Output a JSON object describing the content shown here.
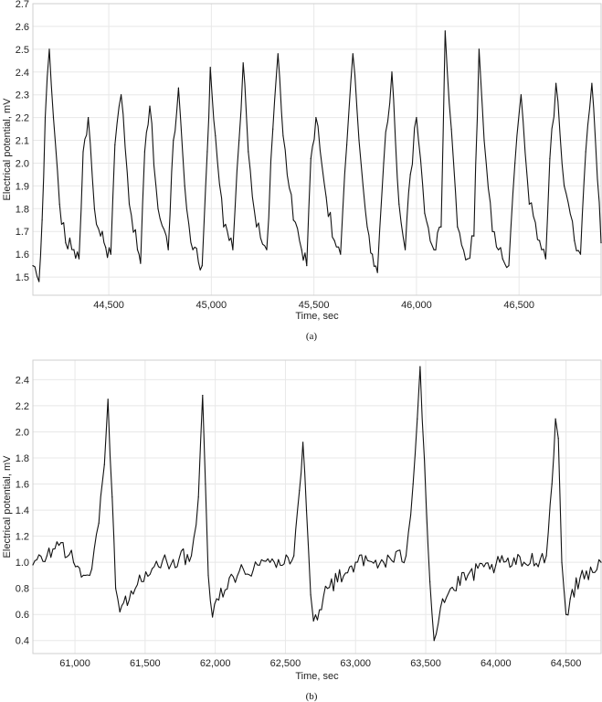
{
  "chart_data": [
    {
      "type": "line",
      "caption": "(a)",
      "xlabel": "Time, sec",
      "ylabel": "Electrical potential, mV",
      "xlim": [
        44130,
        46900
      ],
      "ylim": [
        1.42,
        2.7
      ],
      "xticks": [
        44500,
        45000,
        45500,
        46000,
        46500
      ],
      "xtick_labels": [
        "44,500",
        "45,000",
        "45,500",
        "46,000",
        "46,500"
      ],
      "yticks": [
        1.5,
        1.6,
        1.7,
        1.8,
        1.9,
        2.0,
        2.1,
        2.2,
        2.3,
        2.4,
        2.5,
        2.6,
        2.7
      ],
      "ytick_labels": [
        "1.5",
        "1.6",
        "1.7",
        "1.8",
        "1.9",
        "2.0",
        "2.1",
        "2.2",
        "2.3",
        "2.4",
        "2.5",
        "2.6",
        "2.7"
      ],
      "grid": true,
      "series": [
        {
          "x": [
            44130,
            44160,
            44175,
            44190,
            44210,
            44230,
            44260,
            44290,
            44330,
            44355,
            44375,
            44400,
            44430,
            44460,
            44485,
            44510,
            44530,
            44560,
            44600,
            44640,
            44655,
            44675,
            44700,
            44740,
            44790,
            44815,
            44840,
            44870,
            44910,
            44955,
            44980,
            44995,
            45020,
            45060,
            45105,
            45135,
            45155,
            45180,
            45220,
            45270,
            45300,
            45325,
            45350,
            45400,
            45440,
            45465,
            45485,
            45510,
            45560,
            45600,
            45630,
            45660,
            45690,
            45720,
            45760,
            45785,
            45810,
            45840,
            45880,
            45915,
            45945,
            45970,
            46000,
            46040,
            46085,
            46120,
            46140,
            46170,
            46200,
            46250,
            46280,
            46305,
            46330,
            46370,
            46420,
            46450,
            46480,
            46510,
            46550,
            46600,
            46630,
            46650,
            46680,
            46720,
            46770,
            46800,
            46825,
            46855,
            46900
          ],
          "y": [
            1.55,
            1.48,
            1.75,
            2.2,
            2.5,
            2.2,
            1.82,
            1.65,
            1.62,
            1.58,
            2.05,
            2.2,
            1.8,
            1.68,
            1.63,
            1.6,
            2.08,
            2.3,
            1.82,
            1.62,
            1.56,
            2.05,
            2.25,
            1.8,
            1.62,
            2.1,
            2.33,
            1.9,
            1.62,
            1.55,
            2.05,
            2.42,
            2.12,
            1.72,
            1.62,
            2.1,
            2.44,
            2.05,
            1.72,
            1.62,
            2.15,
            2.48,
            2.12,
            1.75,
            1.62,
            1.55,
            2.02,
            2.2,
            1.85,
            1.66,
            1.6,
            2.08,
            2.48,
            2.1,
            1.72,
            1.6,
            1.52,
            2.0,
            2.4,
            1.82,
            1.62,
            1.95,
            2.2,
            1.78,
            1.62,
            1.72,
            2.58,
            2.15,
            1.72,
            1.58,
            1.68,
            2.5,
            2.1,
            1.7,
            1.58,
            1.55,
            2.0,
            2.3,
            1.82,
            1.66,
            1.58,
            2.02,
            2.35,
            1.9,
            1.66,
            1.6,
            2.05,
            2.35,
            1.65
          ]
        }
      ]
    },
    {
      "type": "line",
      "caption": "(b)",
      "xlabel": "Time, sec",
      "ylabel": "Electrical potential, mV",
      "xlim": [
        60700,
        64750
      ],
      "ylim": [
        0.3,
        2.55
      ],
      "xticks": [
        61000,
        61500,
        62000,
        62500,
        63000,
        63500,
        64000,
        64500
      ],
      "xtick_labels": [
        "61,000",
        "61,500",
        "62,000",
        "62,500",
        "63,000",
        "63,500",
        "64,000",
        "64,500"
      ],
      "yticks": [
        0.4,
        0.6,
        0.8,
        1.0,
        1.2,
        1.4,
        1.6,
        1.8,
        2.0,
        2.2,
        2.4
      ],
      "ytick_labels": [
        "0.4",
        "0.6",
        "0.8",
        "1.0",
        "1.2",
        "1.4",
        "1.6",
        "1.8",
        "2.0",
        "2.2",
        "2.4"
      ],
      "grid": true,
      "series": [
        {
          "x": [
            60700,
            60800,
            60900,
            60990,
            61060,
            61120,
            61170,
            61210,
            61235,
            61265,
            61290,
            61320,
            61400,
            61550,
            61700,
            61830,
            61880,
            61910,
            61930,
            61950,
            61980,
            62010,
            62100,
            62300,
            62450,
            62560,
            62600,
            62625,
            62650,
            62680,
            62700,
            62800,
            63000,
            63200,
            63360,
            63410,
            63440,
            63460,
            63490,
            63530,
            63560,
            63620,
            63800,
            64000,
            64200,
            64360,
            64400,
            64425,
            64445,
            64470,
            64500,
            64530,
            64600,
            64750
          ],
          "y": [
            0.98,
            1.05,
            1.15,
            1.0,
            0.9,
            0.95,
            1.3,
            1.75,
            2.25,
            1.5,
            0.8,
            0.62,
            0.78,
            0.95,
            1.02,
            1.05,
            1.5,
            2.28,
            1.6,
            0.9,
            0.58,
            0.72,
            0.88,
            0.98,
            1.02,
            1.05,
            1.55,
            1.92,
            1.4,
            0.75,
            0.55,
            0.8,
            1.0,
            1.0,
            1.05,
            1.6,
            2.1,
            2.5,
            1.8,
            0.85,
            0.4,
            0.72,
            0.9,
            0.98,
            1.0,
            1.05,
            1.6,
            2.1,
            1.95,
            1.0,
            0.6,
            0.72,
            0.88,
            1.0
          ]
        }
      ]
    }
  ]
}
